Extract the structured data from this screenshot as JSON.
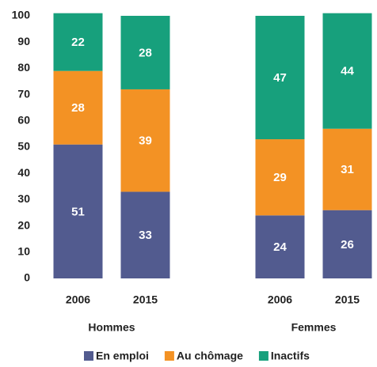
{
  "chart_data": {
    "type": "stacked_bar",
    "categories": [
      "2006",
      "2015",
      null,
      "2006",
      "2015"
    ],
    "groups": [
      "Hommes",
      "Femmes"
    ],
    "series": [
      {
        "name": "En emploi",
        "color": "#525b8f",
        "values": [
          51,
          33,
          null,
          24,
          26
        ]
      },
      {
        "name": "Au chômage",
        "color": "#f39224",
        "values": [
          28,
          39,
          null,
          29,
          31
        ]
      },
      {
        "name": "Inactifs",
        "color": "#17a07c",
        "values": [
          22,
          28,
          null,
          47,
          44
        ]
      }
    ],
    "ylim": [
      0,
      100
    ],
    "yticks": [
      0,
      10,
      20,
      30,
      40,
      50,
      60,
      70,
      80,
      90,
      100
    ],
    "grid": false,
    "legend": "bottom"
  }
}
